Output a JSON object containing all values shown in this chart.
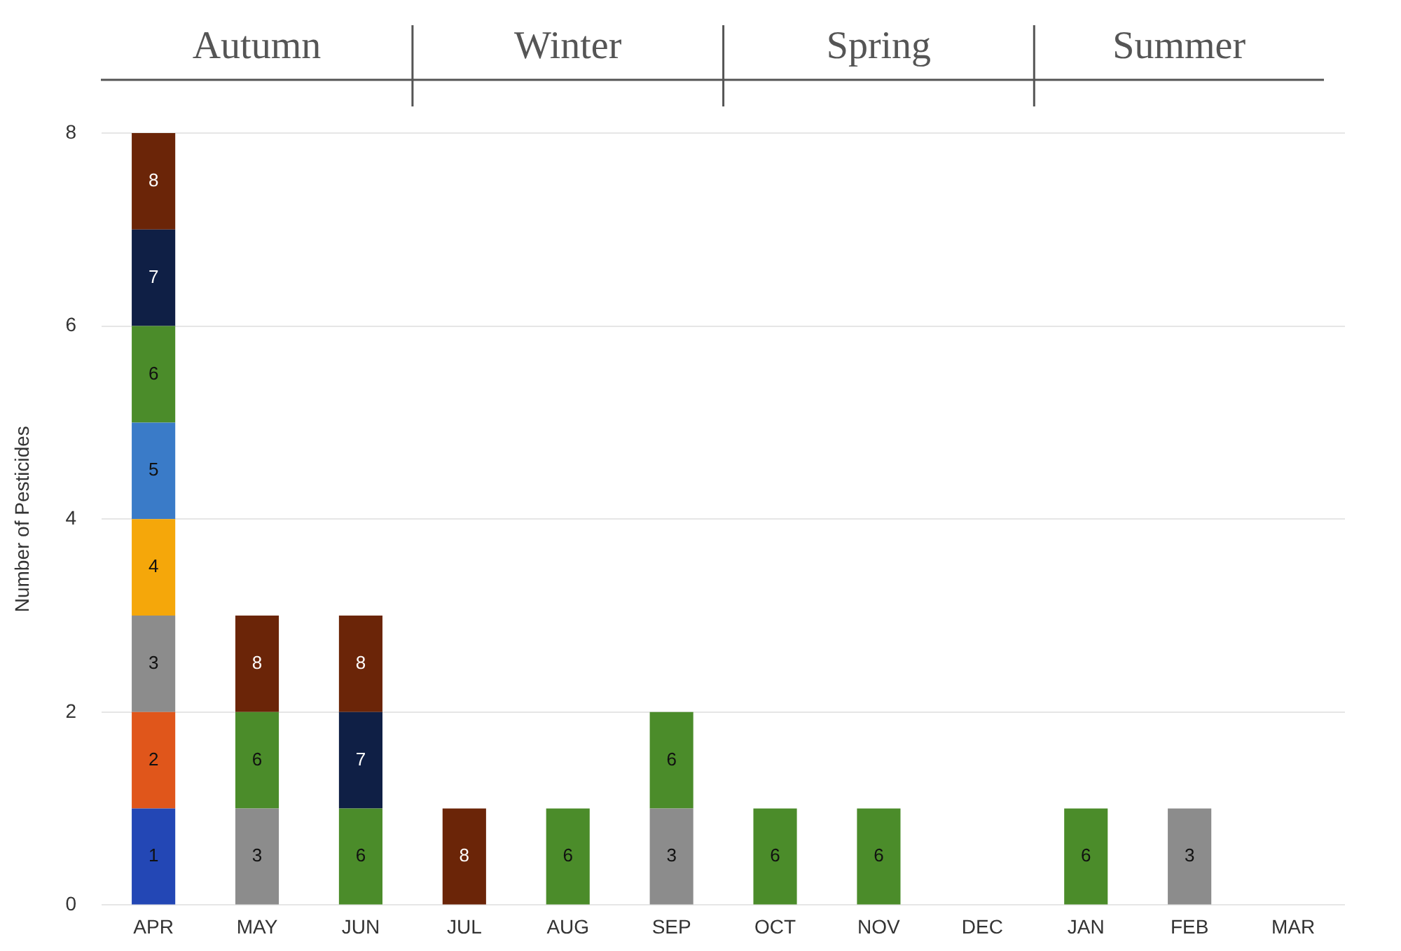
{
  "chart_data": {
    "type": "bar",
    "stacked": true,
    "ylabel": "Number of Pesticides",
    "categories": [
      "APR",
      "MAY",
      "JUN",
      "JUL",
      "AUG",
      "SEP",
      "OCT",
      "NOV",
      "DEC",
      "JAN",
      "FEB",
      "MAR"
    ],
    "series": [
      {
        "name": "1",
        "color": "#2347b5",
        "values": [
          1,
          null,
          null,
          null,
          null,
          null,
          null,
          null,
          null,
          null,
          null,
          null
        ]
      },
      {
        "name": "2",
        "color": "#e0561b",
        "values": [
          1,
          null,
          null,
          null,
          null,
          null,
          null,
          null,
          null,
          null,
          null,
          null
        ]
      },
      {
        "name": "3",
        "color": "#8c8c8c",
        "values": [
          1,
          1,
          null,
          null,
          null,
          1,
          null,
          null,
          null,
          null,
          1,
          null
        ]
      },
      {
        "name": "4",
        "color": "#f5a70a",
        "values": [
          1,
          null,
          null,
          null,
          null,
          null,
          null,
          null,
          null,
          null,
          null,
          null
        ]
      },
      {
        "name": "5",
        "color": "#3a7bc8",
        "values": [
          1,
          null,
          null,
          null,
          null,
          null,
          null,
          null,
          null,
          null,
          null,
          null
        ]
      },
      {
        "name": "6",
        "color": "#4b8c2a",
        "values": [
          1,
          1,
          1,
          null,
          1,
          1,
          1,
          1,
          null,
          1,
          null,
          null
        ]
      },
      {
        "name": "7",
        "color": "#0f1f45",
        "values": [
          1,
          null,
          1,
          null,
          null,
          null,
          null,
          null,
          null,
          null,
          null,
          null
        ]
      },
      {
        "name": "8",
        "color": "#6b2508",
        "values": [
          1,
          1,
          1,
          1,
          null,
          null,
          null,
          null,
          null,
          null,
          null,
          null
        ]
      }
    ],
    "ylim": [
      0,
      8
    ],
    "yticks": [
      0,
      2,
      4,
      6,
      8
    ],
    "grid": "y",
    "annotations": [
      "Autumn",
      "Winter",
      "Spring",
      "Summer"
    ]
  }
}
